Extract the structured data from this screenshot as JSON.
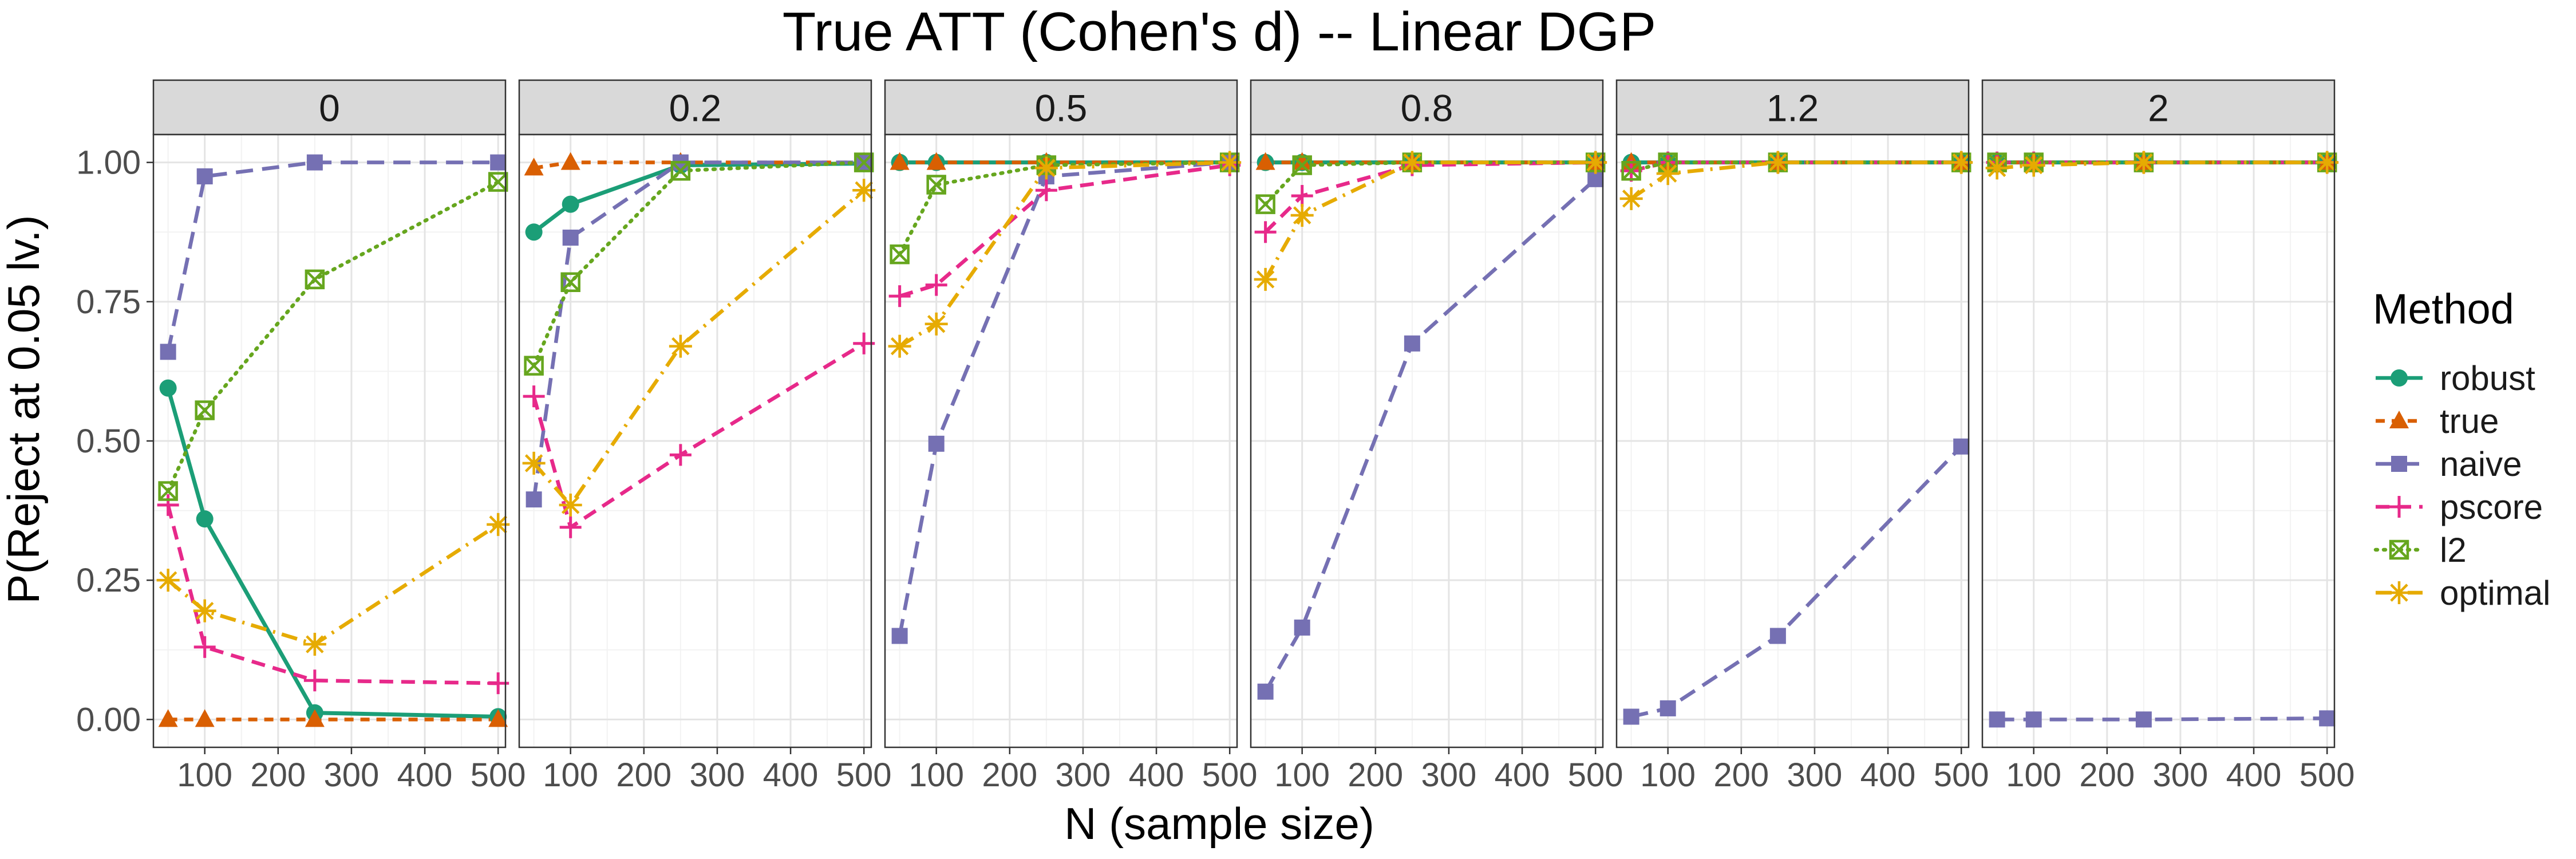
{
  "chart_data": {
    "type": "line",
    "title": "True ATT (Cohen's d) -- Linear DGP",
    "xlabel": "N (sample size)",
    "ylabel": "P(Reject at 0.05 lv.)",
    "xlim": [
      30,
      510
    ],
    "ylim": [
      -0.05,
      1.05
    ],
    "x_ticks": [
      100,
      200,
      300,
      400,
      500
    ],
    "y_ticks": [
      0,
      0.25,
      0.5,
      0.75,
      1
    ],
    "y_tick_labels": [
      "0.00",
      "0.25",
      "0.50",
      "0.75",
      "1.00"
    ],
    "x": [
      50,
      100,
      250,
      500
    ],
    "legend": {
      "title": "Method",
      "position": "right"
    },
    "series_styles": [
      {
        "name": "robust",
        "color": "#1b9e77",
        "dash": "solid",
        "marker": "circle"
      },
      {
        "name": "true",
        "color": "#d95f02",
        "dash": "dashed",
        "marker": "triangle"
      },
      {
        "name": "naive",
        "color": "#7570b3",
        "dash": "longdash",
        "marker": "square"
      },
      {
        "name": "pscore",
        "color": "#e7298a",
        "dash": "dashed2",
        "marker": "plus"
      },
      {
        "name": "l2",
        "color": "#66a61e",
        "dash": "dotted",
        "marker": "boxx"
      },
      {
        "name": "optimal",
        "color": "#e6ab02",
        "dash": "dotdash",
        "marker": "asterisk"
      }
    ],
    "panels": [
      {
        "label": "0",
        "series": {
          "robust": [
            0.595,
            0.36,
            0.012,
            0.005
          ],
          "true": [
            0.0,
            0.0,
            0.0,
            0.0
          ],
          "naive": [
            0.66,
            0.975,
            1.0,
            1.0
          ],
          "pscore": [
            0.385,
            0.13,
            0.07,
            0.065
          ],
          "l2": [
            0.41,
            0.555,
            0.79,
            0.965
          ],
          "optimal": [
            0.25,
            0.195,
            0.135,
            0.35
          ]
        }
      },
      {
        "label": "0.2",
        "series": {
          "robust": [
            0.875,
            0.925,
            0.995,
            0.998
          ],
          "true": [
            0.99,
            1.0,
            1.0,
            1.0
          ],
          "naive": [
            0.395,
            0.865,
            1.0,
            1.0
          ],
          "pscore": [
            0.58,
            0.345,
            0.475,
            0.675
          ],
          "l2": [
            0.635,
            0.785,
            0.985,
            1.0
          ],
          "optimal": [
            0.46,
            0.385,
            0.67,
            0.95
          ]
        }
      },
      {
        "label": "0.5",
        "series": {
          "robust": [
            1.0,
            1.0,
            1.0,
            1.0
          ],
          "true": [
            1.0,
            1.0,
            1.0,
            1.0
          ],
          "naive": [
            0.15,
            0.495,
            0.975,
            1.0
          ],
          "pscore": [
            0.76,
            0.78,
            0.95,
            0.995
          ],
          "l2": [
            0.835,
            0.96,
            0.995,
            1.0
          ],
          "optimal": [
            0.67,
            0.71,
            0.99,
            1.0
          ]
        }
      },
      {
        "label": "0.8",
        "series": {
          "robust": [
            1.0,
            1.0,
            1.0,
            1.0
          ],
          "true": [
            1.0,
            1.0,
            1.0,
            1.0
          ],
          "naive": [
            0.05,
            0.165,
            0.675,
            0.97
          ],
          "pscore": [
            0.875,
            0.94,
            0.995,
            1.0
          ],
          "l2": [
            0.925,
            0.995,
            1.0,
            1.0
          ],
          "optimal": [
            0.79,
            0.905,
            1.0,
            1.0
          ]
        }
      },
      {
        "label": "1.2",
        "series": {
          "robust": [
            1.0,
            1.0,
            1.0,
            1.0
          ],
          "true": [
            1.0,
            1.0,
            1.0,
            1.0
          ],
          "naive": [
            0.005,
            0.02,
            0.15,
            0.49
          ],
          "pscore": [
            0.985,
            1.0,
            1.0,
            1.0
          ],
          "l2": [
            0.985,
            1.0,
            1.0,
            1.0
          ],
          "optimal": [
            0.935,
            0.98,
            1.0,
            1.0
          ]
        }
      },
      {
        "label": "2",
        "series": {
          "robust": [
            1.0,
            1.0,
            1.0,
            1.0
          ],
          "true": [
            1.0,
            1.0,
            1.0,
            1.0
          ],
          "naive": [
            0.0,
            0.0,
            0.0,
            0.002
          ],
          "pscore": [
            1.0,
            1.0,
            1.0,
            1.0
          ],
          "l2": [
            1.0,
            1.0,
            1.0,
            1.0
          ],
          "optimal": [
            0.99,
            0.995,
            1.0,
            1.0
          ]
        }
      }
    ]
  }
}
